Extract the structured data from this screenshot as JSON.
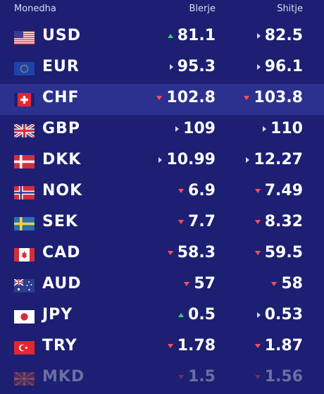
{
  "header": {
    "currency": "Monedha",
    "buy": "Blerje",
    "sell": "Shitje"
  },
  "rows": [
    {
      "code": "USD",
      "flag": "flag-usa",
      "buy": "81.1",
      "buy_trend": "up",
      "sell": "82.5",
      "sell_trend": "flat",
      "highlight": false
    },
    {
      "code": "EUR",
      "flag": "flag-eu",
      "buy": "95.3",
      "buy_trend": "flat",
      "sell": "96.1",
      "sell_trend": "flat",
      "highlight": false
    },
    {
      "code": "CHF",
      "flag": "flag-switzerland",
      "buy": "102.8",
      "buy_trend": "down",
      "sell": "103.8",
      "sell_trend": "down",
      "highlight": true
    },
    {
      "code": "GBP",
      "flag": "flag-uk",
      "buy": "109",
      "buy_trend": "flat",
      "sell": "110",
      "sell_trend": "flat",
      "highlight": false
    },
    {
      "code": "DKK",
      "flag": "flag-denmark",
      "buy": "10.99",
      "buy_trend": "flat",
      "sell": "12.27",
      "sell_trend": "flat",
      "highlight": false
    },
    {
      "code": "NOK",
      "flag": "flag-norway",
      "buy": "6.9",
      "buy_trend": "down",
      "sell": "7.49",
      "sell_trend": "down",
      "highlight": false
    },
    {
      "code": "SEK",
      "flag": "flag-sweden",
      "buy": "7.7",
      "buy_trend": "down",
      "sell": "8.32",
      "sell_trend": "down",
      "highlight": false
    },
    {
      "code": "CAD",
      "flag": "flag-canada",
      "buy": "58.3",
      "buy_trend": "down",
      "sell": "59.5",
      "sell_trend": "down",
      "highlight": false
    },
    {
      "code": "AUD",
      "flag": "flag-australia",
      "buy": "57",
      "buy_trend": "down",
      "sell": "58",
      "sell_trend": "down",
      "highlight": false
    },
    {
      "code": "JPY",
      "flag": "flag-japan",
      "buy": "0.5",
      "buy_trend": "up",
      "sell": "0.53",
      "sell_trend": "flat",
      "highlight": false
    },
    {
      "code": "TRY",
      "flag": "flag-turkey",
      "buy": "1.78",
      "buy_trend": "down",
      "sell": "1.87",
      "sell_trend": "down",
      "highlight": false
    },
    {
      "code": "MKD",
      "flag": "flag-macedonia",
      "buy": "1.5",
      "buy_trend": "down",
      "sell": "1.56",
      "sell_trend": "down",
      "highlight": false
    }
  ],
  "colors": {
    "background": "#1c1f72",
    "highlight": "#2c3190",
    "up": "#2fd07a",
    "down": "#ff4d5a",
    "flat": "#d6d9f0"
  }
}
